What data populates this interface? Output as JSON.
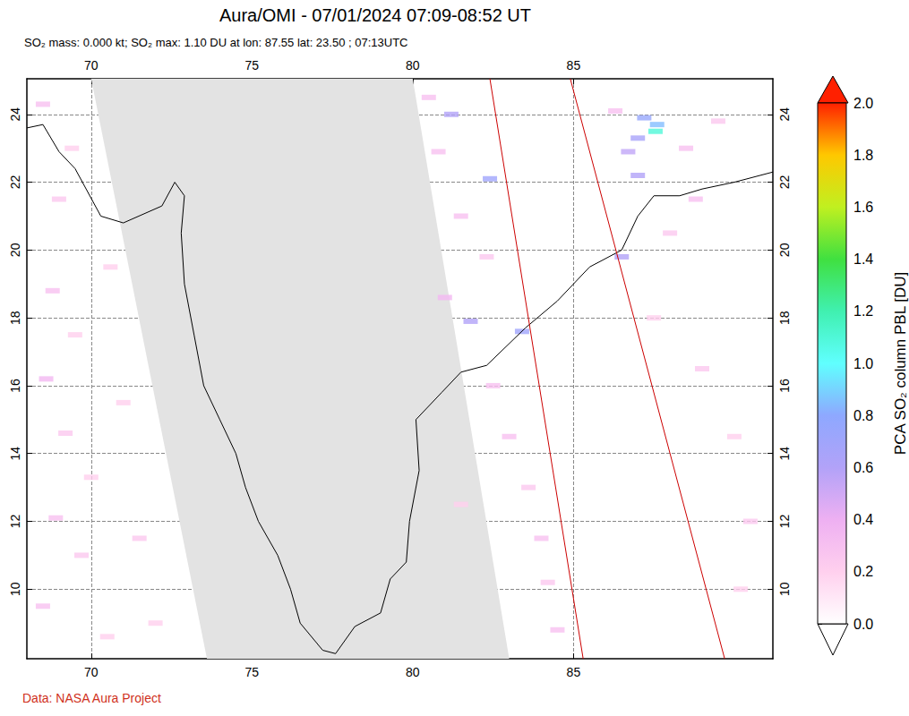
{
  "chart_data": {
    "type": "map",
    "title": "Aura/OMI - 07/01/2024 07:09-08:52 UT",
    "subtitle": "SO₂ mass: 0.000 kt; SO₂ max: 1.10 DU at lon: 87.55 lat: 23.50 ; 07:13UTC",
    "source": "Data: NASA Aura Project",
    "xlim": [
      68,
      91.2
    ],
    "xticks": [
      70,
      75,
      80,
      85
    ],
    "ylim": [
      7.95,
      25.05
    ],
    "yticks": [
      10,
      12,
      14,
      16,
      18,
      20,
      22,
      24
    ],
    "grid": true,
    "colorbar": {
      "label": "PCA SO₂ column PBL [DU]",
      "range": [
        0,
        2
      ],
      "ticks": [
        {
          "value": 0,
          "label": "0.0"
        },
        0.2,
        0.4,
        0.6,
        0.8,
        {
          "value": 1,
          "label": "1.0"
        },
        1.2,
        1.4,
        1.6,
        1.8,
        {
          "value": 2,
          "label": "2.0"
        }
      ]
    },
    "no_data_swath": [
      [
        70,
        25.05
      ],
      [
        80,
        25.05
      ],
      [
        83.0,
        7.95
      ],
      [
        73.6,
        7.95
      ]
    ],
    "orbit_edges": [
      [
        [
          82.4,
          25.05
        ],
        [
          85.3,
          7.95
        ]
      ],
      [
        [
          84.9,
          25.05
        ],
        [
          89.7,
          7.95
        ]
      ]
    ],
    "coastline": [
      [
        68.0,
        23.6
      ],
      [
        68.5,
        23.7
      ],
      [
        69.0,
        22.9
      ],
      [
        69.5,
        22.4
      ],
      [
        70.3,
        21.0
      ],
      [
        71.0,
        20.8
      ],
      [
        72.2,
        21.3
      ],
      [
        72.6,
        22.0
      ],
      [
        72.9,
        21.6
      ],
      [
        72.8,
        20.5
      ],
      [
        72.9,
        19.0
      ],
      [
        73.2,
        17.5
      ],
      [
        73.5,
        16.0
      ],
      [
        74.0,
        15.0
      ],
      [
        74.5,
        14.0
      ],
      [
        74.8,
        13.0
      ],
      [
        75.2,
        12.0
      ],
      [
        75.8,
        11.0
      ],
      [
        76.2,
        10.0
      ],
      [
        76.5,
        9.0
      ],
      [
        77.2,
        8.2
      ],
      [
        77.6,
        8.1
      ],
      [
        78.2,
        8.9
      ],
      [
        79.0,
        9.3
      ],
      [
        79.3,
        10.3
      ],
      [
        79.8,
        10.8
      ],
      [
        79.9,
        12.0
      ],
      [
        80.2,
        13.5
      ],
      [
        80.1,
        15.0
      ],
      [
        80.9,
        15.8
      ],
      [
        81.5,
        16.4
      ],
      [
        82.3,
        16.6
      ],
      [
        83.5,
        17.7
      ],
      [
        84.5,
        18.5
      ],
      [
        85.5,
        19.5
      ],
      [
        86.5,
        20.0
      ],
      [
        87.0,
        21.0
      ],
      [
        87.5,
        21.6
      ],
      [
        88.3,
        21.6
      ],
      [
        89.0,
        21.8
      ],
      [
        90.0,
        22.0
      ],
      [
        91.2,
        22.3
      ]
    ],
    "cells": [
      [
        68.5,
        24.3,
        0.3
      ],
      [
        69.4,
        23.0,
        0.2
      ],
      [
        69.0,
        21.5,
        0.25
      ],
      [
        70.6,
        19.5,
        0.2
      ],
      [
        68.8,
        18.8,
        0.3
      ],
      [
        69.5,
        17.5,
        0.2
      ],
      [
        68.6,
        16.2,
        0.35
      ],
      [
        71.0,
        15.5,
        0.2
      ],
      [
        69.2,
        14.6,
        0.25
      ],
      [
        70.0,
        13.3,
        0.2
      ],
      [
        68.9,
        12.1,
        0.3
      ],
      [
        71.5,
        11.5,
        0.25
      ],
      [
        69.7,
        11.0,
        0.25
      ],
      [
        68.5,
        9.5,
        0.3
      ],
      [
        72.0,
        9.0,
        0.2
      ],
      [
        70.5,
        8.6,
        0.2
      ],
      [
        80.5,
        24.5,
        0.3
      ],
      [
        81.2,
        24.0,
        0.6
      ],
      [
        80.8,
        22.9,
        0.3
      ],
      [
        82.4,
        22.1,
        0.7
      ],
      [
        81.5,
        21.0,
        0.3
      ],
      [
        82.3,
        19.8,
        0.25
      ],
      [
        81.0,
        18.6,
        0.35
      ],
      [
        81.8,
        17.9,
        0.6
      ],
      [
        83.4,
        17.6,
        0.7
      ],
      [
        82.5,
        16.0,
        0.3
      ],
      [
        83.0,
        14.5,
        0.3
      ],
      [
        83.6,
        13.0,
        0.25
      ],
      [
        81.5,
        12.5,
        0.2
      ],
      [
        84.0,
        11.5,
        0.3
      ],
      [
        84.2,
        10.2,
        0.25
      ],
      [
        84.5,
        8.8,
        0.3
      ],
      [
        86.3,
        24.1,
        0.3
      ],
      [
        87.2,
        23.9,
        0.75
      ],
      [
        87.6,
        23.7,
        0.85
      ],
      [
        87.55,
        23.5,
        1.1
      ],
      [
        87.0,
        23.3,
        0.65
      ],
      [
        86.7,
        22.9,
        0.55
      ],
      [
        87.0,
        22.2,
        0.6
      ],
      [
        88.5,
        23.0,
        0.3
      ],
      [
        89.5,
        23.8,
        0.25
      ],
      [
        88.8,
        21.5,
        0.3
      ],
      [
        86.5,
        19.8,
        0.6
      ],
      [
        88.0,
        20.5,
        0.25
      ],
      [
        87.5,
        18.0,
        0.2
      ],
      [
        89.0,
        16.5,
        0.25
      ],
      [
        90.0,
        14.5,
        0.2
      ],
      [
        90.5,
        12.0,
        0.25
      ],
      [
        90.2,
        10.0,
        0.2
      ]
    ]
  }
}
